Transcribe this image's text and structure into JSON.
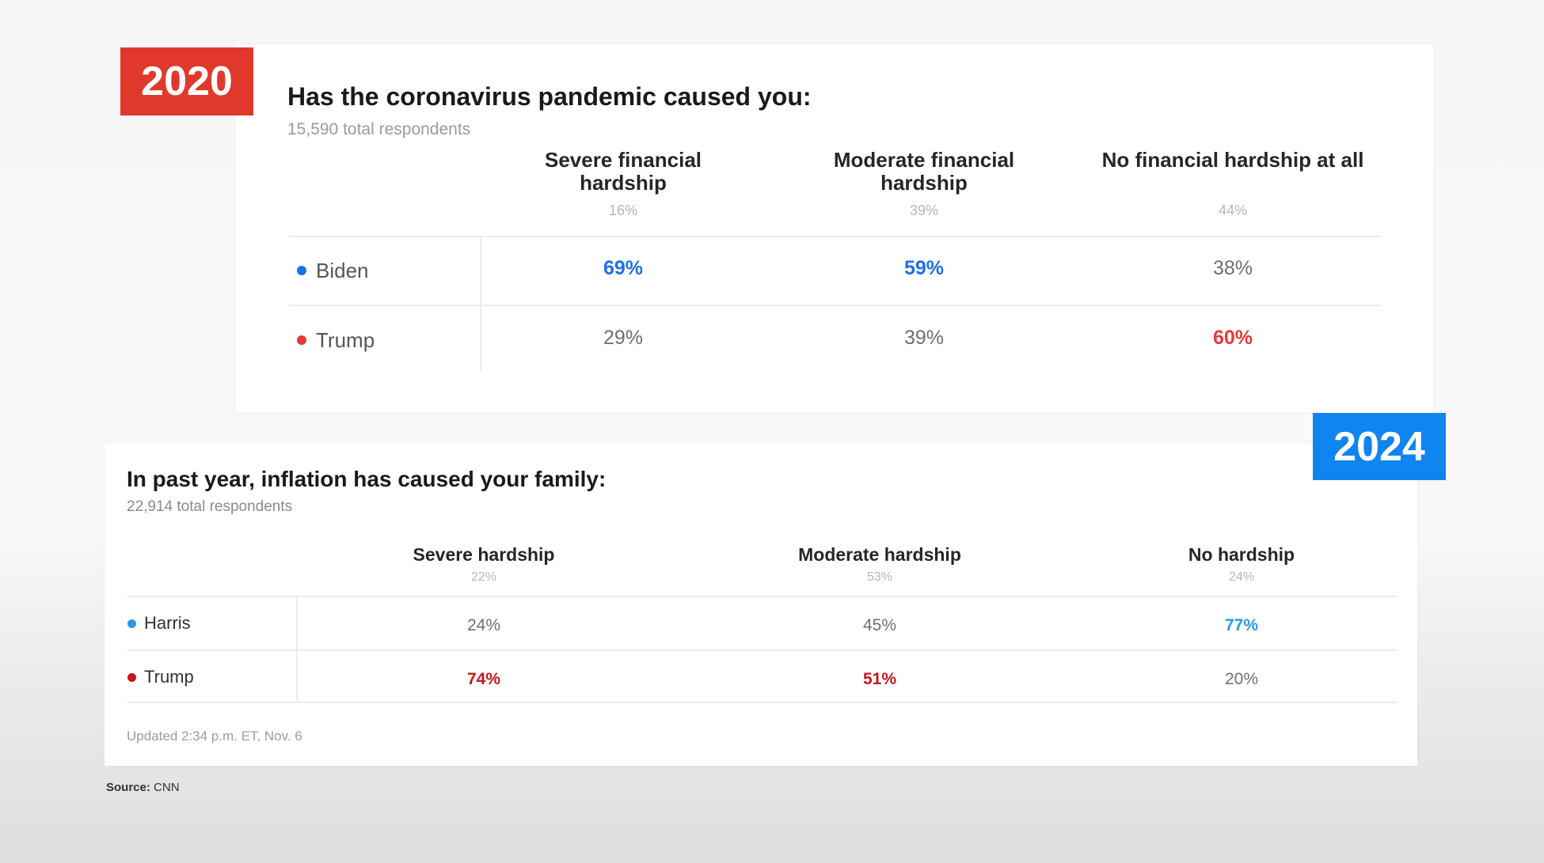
{
  "colors": {
    "tag_2020": "#e0392b",
    "tag_2024": "#0f85f0",
    "biden_blue": "#1f6fe8",
    "trump_red_2020": "#e5393a",
    "harris_blue": "#2a9ae8",
    "trump_red_2024": "#c4161c"
  },
  "chart_data": [
    {
      "type": "table",
      "year_tag": "2020",
      "title": "Has the coronavirus pandemic caused you:",
      "respondents": "15,590 total respondents",
      "columns": [
        {
          "label": "Severe financial hardship",
          "share": "16%"
        },
        {
          "label": "Moderate financial hardship",
          "share": "39%"
        },
        {
          "label": "No financial hardship at all",
          "share": "44%"
        }
      ],
      "rows": [
        {
          "name": "Biden",
          "dot_color": "#1f6fe8",
          "values": [
            "69%",
            "59%",
            "38%"
          ],
          "highlight": [
            true,
            true,
            false
          ]
        },
        {
          "name": "Trump",
          "dot_color": "#e5393a",
          "values": [
            "29%",
            "39%",
            "60%"
          ],
          "highlight": [
            false,
            false,
            true
          ]
        }
      ]
    },
    {
      "type": "table",
      "year_tag": "2024",
      "title": "In past year, inflation has caused your family:",
      "respondents": "22,914 total respondents",
      "columns": [
        {
          "label": "Severe hardship",
          "share": "22%"
        },
        {
          "label": "Moderate hardship",
          "share": "53%"
        },
        {
          "label": "No hardship",
          "share": "24%"
        }
      ],
      "rows": [
        {
          "name": "Harris",
          "dot_color": "#2a9ae8",
          "values": [
            "24%",
            "45%",
            "77%"
          ],
          "highlight": [
            false,
            false,
            true
          ]
        },
        {
          "name": "Trump",
          "dot_color": "#c4161c",
          "values": [
            "74%",
            "51%",
            "20%"
          ],
          "highlight": [
            true,
            true,
            false
          ]
        }
      ],
      "updated": "Updated 2:34 p.m. ET, Nov. 6"
    }
  ],
  "source": {
    "label": "Source:",
    "value": "CNN"
  }
}
